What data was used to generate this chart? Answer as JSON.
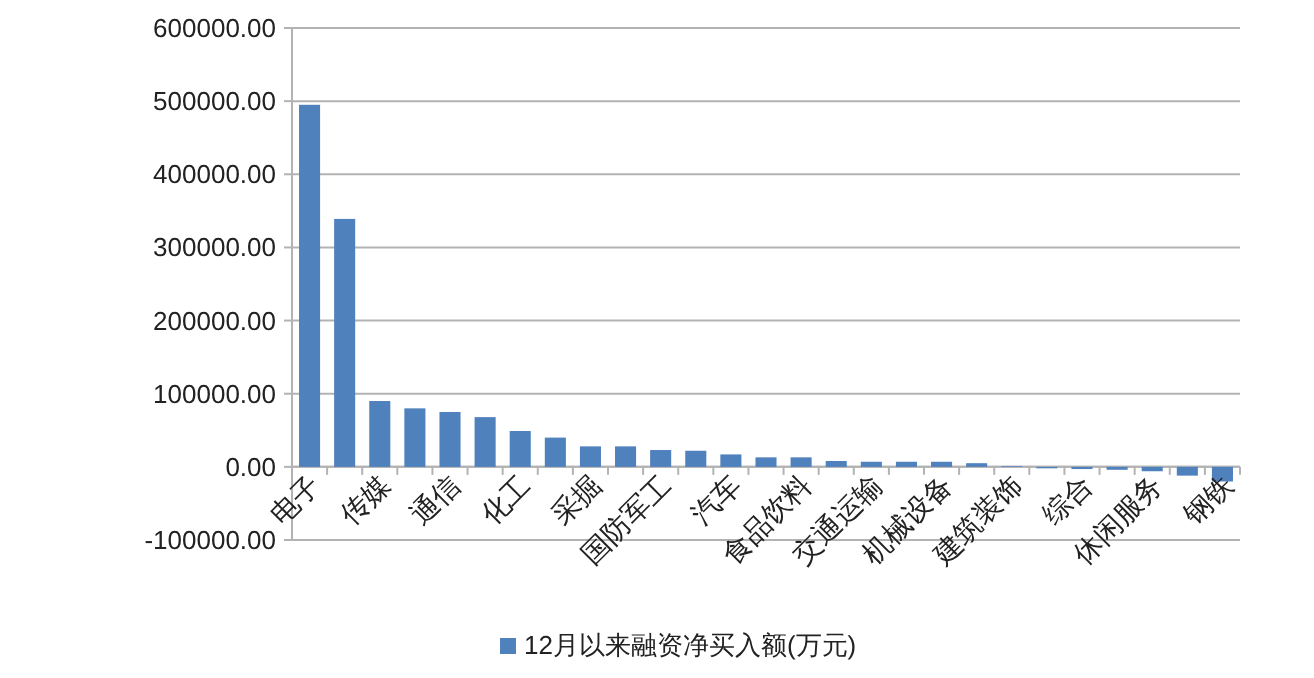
{
  "chart_data": {
    "type": "bar",
    "categories": [
      "电子",
      null,
      "传媒",
      null,
      "通信",
      null,
      "化工",
      null,
      "采掘",
      null,
      "国防军工",
      null,
      "汽车",
      null,
      "食品饮料",
      null,
      "交通运输",
      null,
      "机械设备",
      null,
      "建筑装饰",
      null,
      "综合",
      null,
      "休闲服务",
      null,
      "钢铁"
    ],
    "series": [
      {
        "name": "12月以来融资净买入额(万元)",
        "color": "#4f81bd",
        "values": [
          495000,
          339000,
          90000,
          80000,
          75000,
          68000,
          49000,
          40000,
          28000,
          28000,
          23000,
          22000,
          17000,
          13000,
          13000,
          8000,
          7000,
          7000,
          7000,
          5000,
          1000,
          -2000,
          -3000,
          -4000,
          -6000,
          -12000,
          -20000
        ]
      }
    ],
    "ylim": [
      -100000,
      600000
    ],
    "yticks": [
      {
        "value": -100000,
        "label": "-100000.00"
      },
      {
        "value": 0,
        "label": "0.00"
      },
      {
        "value": 100000,
        "label": "100000.00"
      },
      {
        "value": 200000,
        "label": "200000.00"
      },
      {
        "value": 300000,
        "label": "300000.00"
      },
      {
        "value": 400000,
        "label": "400000.00"
      },
      {
        "value": 500000,
        "label": "500000.00"
      },
      {
        "value": 600000,
        "label": "600000.00"
      }
    ],
    "grid": "y",
    "legend": "bottom"
  }
}
